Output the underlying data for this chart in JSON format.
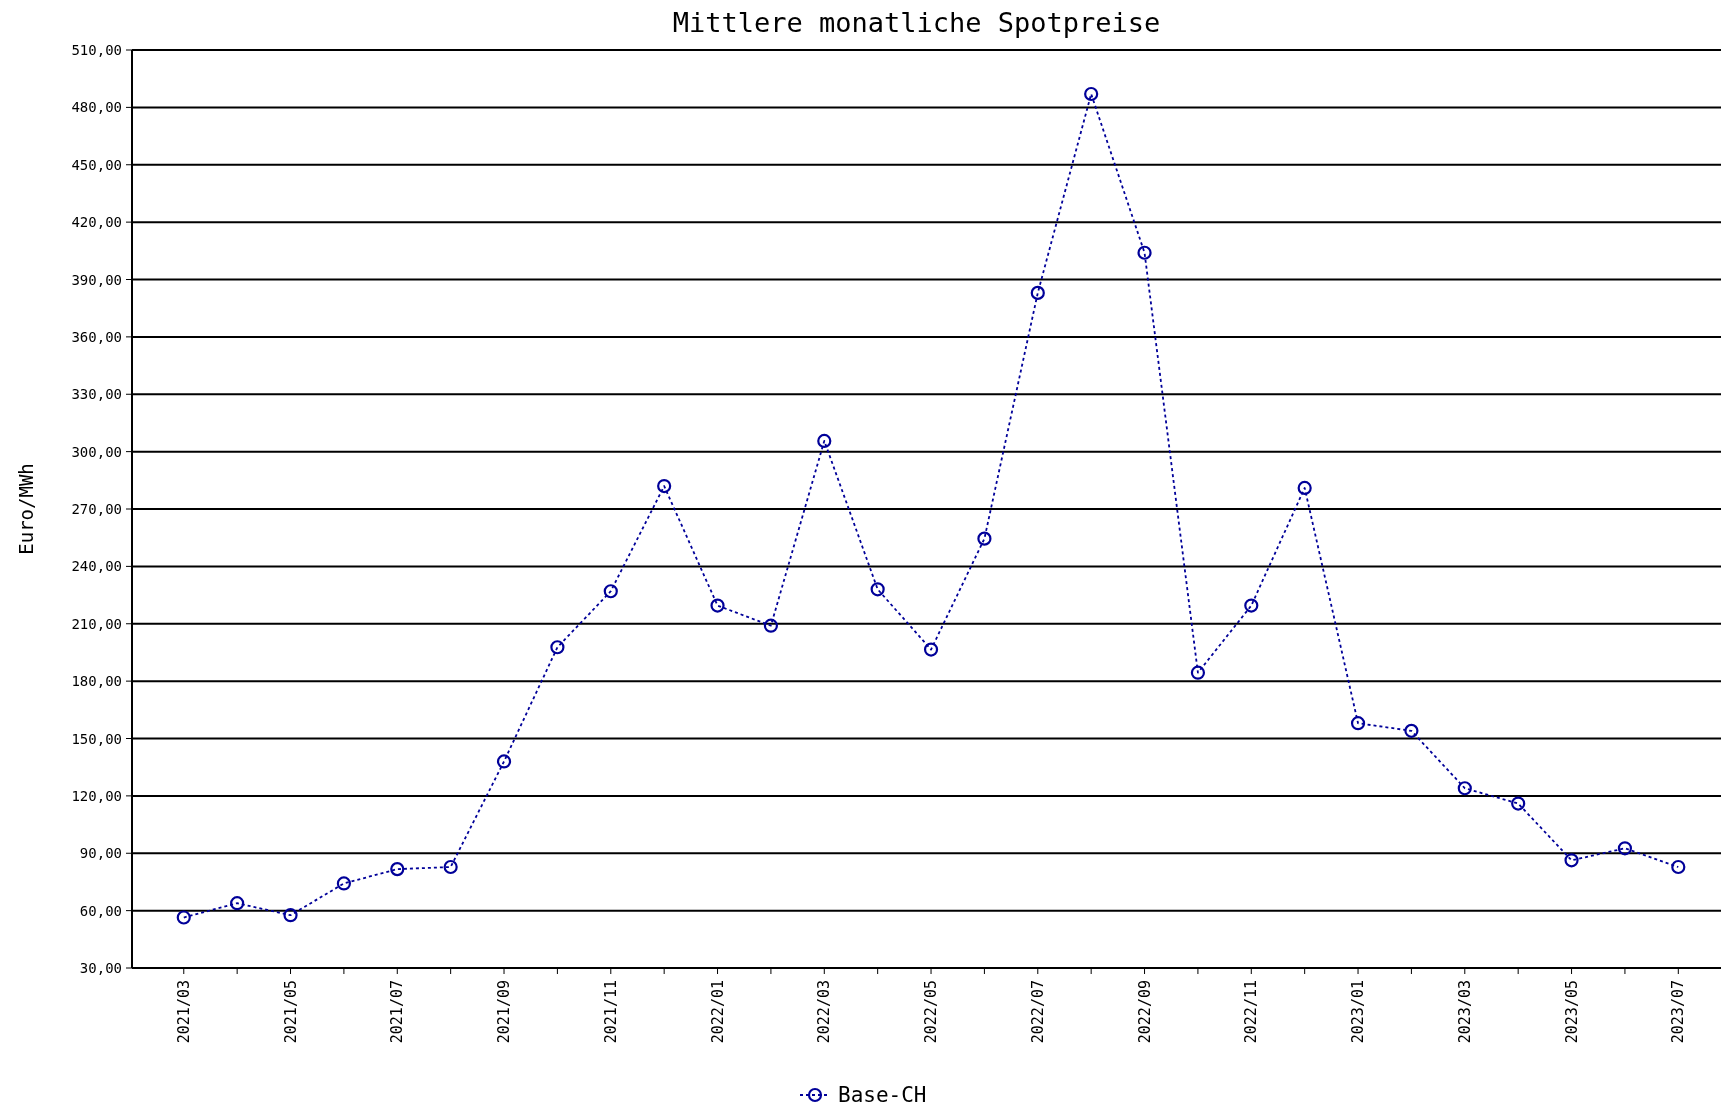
{
  "chart_data": {
    "type": "line",
    "title": "Mittlere monatliche Spotpreise",
    "ylabel": "Euro/MWh",
    "categories": [
      "2021/03",
      null,
      "2021/05",
      null,
      "2021/07",
      null,
      "2021/09",
      null,
      "2021/11",
      null,
      "2022/01",
      null,
      "2022/03",
      null,
      "2022/05",
      null,
      "2022/07",
      null,
      "2022/09",
      null,
      "2022/11",
      null,
      "2023/01",
      null,
      "2023/03",
      null,
      "2023/05",
      null,
      "2023/07"
    ],
    "series": [
      {
        "name": "Base-CH",
        "color": "#000099",
        "values": [
          56.4,
          63.9,
          57.6,
          74.2,
          81.7,
          82.8,
          138,
          197.7,
          227,
          282,
          219.5,
          209,
          305.6,
          228,
          196.5,
          254.5,
          383,
          487,
          404,
          184.4,
          219.5,
          281,
          158,
          154,
          124,
          116,
          86.3,
          92.6,
          82.8
        ]
      }
    ],
    "ylim": [
      30,
      510
    ],
    "yticks": [
      {
        "value": 30,
        "label": "30,00"
      },
      {
        "value": 60,
        "label": "60,00"
      },
      {
        "value": 90,
        "label": "90,00"
      },
      {
        "value": 120,
        "label": "120,00"
      },
      {
        "value": 150,
        "label": "150,00"
      },
      {
        "value": 180,
        "label": "180,00"
      },
      {
        "value": 210,
        "label": "210,00"
      },
      {
        "value": 240,
        "label": "240,00"
      },
      {
        "value": 270,
        "label": "270,00"
      },
      {
        "value": 300,
        "label": "300,00"
      },
      {
        "value": 330,
        "label": "330,00"
      },
      {
        "value": 360,
        "label": "360,00"
      },
      {
        "value": 390,
        "label": "390,00"
      },
      {
        "value": 420,
        "label": "420,00"
      },
      {
        "value": 450,
        "label": "450,00"
      },
      {
        "value": 480,
        "label": "480,00"
      },
      {
        "value": 510,
        "label": "510,00"
      }
    ],
    "grid": "y",
    "legend": "bottom",
    "marker": "circle",
    "line_style": "dotted"
  }
}
